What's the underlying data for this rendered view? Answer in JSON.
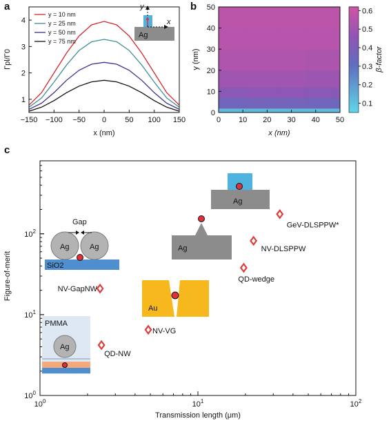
{
  "colors": {
    "red": "#d7262b",
    "teal": "#3f8f96",
    "indigo": "#3a2f8f",
    "black": "#111111",
    "silver": "#8c8c8c",
    "gold": "#f6b81c",
    "blue": "#4f8fd0",
    "cyan": "#3fb8dc",
    "pmma": "#dde8f2",
    "orange": "#f3a97a",
    "marker": "#e0303a",
    "diamond": "#e03c3c"
  },
  "panels": {
    "a": "a",
    "b": "b",
    "c": "c"
  },
  "insets": {
    "a": {
      "substrate": "Ag",
      "x_axis": "x",
      "y_axis": "y"
    },
    "c": {
      "gap_label": "Gap",
      "ag": "Ag",
      "sio2": "SiO2",
      "au": "Au",
      "pmma": "PMMA"
    }
  },
  "chart_data": [
    {
      "panel": "a",
      "type": "line",
      "title": "",
      "xlabel": "x (nm)",
      "ylabel": "Γpl/Γ0",
      "xlim": [
        -150,
        150
      ],
      "ylim": [
        0.5,
        4.5
      ],
      "xticks": [
        -150,
        -100,
        -50,
        0,
        50,
        100,
        150
      ],
      "yticks": [
        1,
        2,
        3,
        4
      ],
      "legend_position": "top-left",
      "series": [
        {
          "name": "y = 10 nm",
          "color": "#d7262b",
          "x": [
            -150,
            -125,
            -100,
            -75,
            -50,
            -25,
            0,
            25,
            50,
            75,
            100,
            125,
            150
          ],
          "y": [
            0.78,
            1.25,
            2.0,
            2.75,
            3.4,
            3.82,
            3.95,
            3.82,
            3.4,
            2.75,
            2.0,
            1.25,
            0.78
          ]
        },
        {
          "name": "y = 25 nm",
          "color": "#3f8f96",
          "x": [
            -150,
            -125,
            -100,
            -75,
            -50,
            -25,
            0,
            25,
            50,
            75,
            100,
            125,
            150
          ],
          "y": [
            0.7,
            1.05,
            1.65,
            2.3,
            2.85,
            3.18,
            3.27,
            3.18,
            2.85,
            2.3,
            1.65,
            1.05,
            0.7
          ]
        },
        {
          "name": "y = 50 nm",
          "color": "#3a2f8f",
          "x": [
            -150,
            -125,
            -100,
            -75,
            -50,
            -25,
            0,
            25,
            50,
            75,
            100,
            125,
            150
          ],
          "y": [
            0.62,
            0.85,
            1.25,
            1.72,
            2.1,
            2.33,
            2.4,
            2.33,
            2.1,
            1.72,
            1.25,
            0.85,
            0.62
          ]
        },
        {
          "name": "y = 75 nm",
          "color": "#111111",
          "x": [
            -150,
            -125,
            -100,
            -75,
            -50,
            -25,
            0,
            25,
            50,
            75,
            100,
            125,
            150
          ],
          "y": [
            0.55,
            0.7,
            0.95,
            1.25,
            1.5,
            1.66,
            1.72,
            1.66,
            1.5,
            1.25,
            0.95,
            0.7,
            0.55
          ]
        }
      ]
    },
    {
      "panel": "b",
      "type": "heatmap",
      "title": "",
      "xlabel": "x (nm)",
      "ylabel": "y (nm)",
      "xlim": [
        0,
        50
      ],
      "ylim": [
        0,
        50
      ],
      "xticks": [
        0,
        10,
        20,
        30,
        40,
        50
      ],
      "yticks": [
        0,
        10,
        20,
        30,
        40,
        50
      ],
      "colorbar_label": "β-factor",
      "colorbar_ticks": [
        0.1,
        0.2,
        0.3,
        0.4,
        0.5,
        0.6
      ],
      "colorbar_range": [
        0.05,
        0.62
      ],
      "x_edges": [
        0,
        12,
        24,
        36,
        48,
        50
      ],
      "y_edges": [
        0,
        2,
        7,
        12,
        20,
        30,
        40,
        50
      ],
      "values": [
        [
          0.12,
          0.12,
          0.12,
          0.12,
          0.12
        ],
        [
          0.36,
          0.37,
          0.37,
          0.36,
          0.36
        ],
        [
          0.44,
          0.45,
          0.45,
          0.44,
          0.44
        ],
        [
          0.5,
          0.5,
          0.5,
          0.49,
          0.49
        ],
        [
          0.54,
          0.54,
          0.54,
          0.53,
          0.53
        ],
        [
          0.56,
          0.56,
          0.56,
          0.56,
          0.56
        ],
        [
          0.57,
          0.57,
          0.57,
          0.57,
          0.57
        ]
      ]
    },
    {
      "panel": "c",
      "type": "scatter",
      "title": "",
      "xlabel": "Transmission length (μm)",
      "ylabel": "Figure-of-merit",
      "xscale": "log",
      "yscale": "log",
      "xlim": [
        1,
        100
      ],
      "ylim": [
        1,
        800
      ],
      "xticks": [
        1,
        10,
        100
      ],
      "yticks": [
        1,
        10,
        100
      ],
      "points": [
        {
          "label": "GeV-DLSPPW*",
          "x": 33,
          "y": 175
        },
        {
          "label": "NV-DLSPPW",
          "x": 22.5,
          "y": 82
        },
        {
          "label": "QD-wedge",
          "x": 19.5,
          "y": 38
        },
        {
          "label": "NV-GapNW",
          "x": 2.4,
          "y": 21
        },
        {
          "label": "NV-VG",
          "x": 4.85,
          "y": 6.5
        },
        {
          "label": "QD-NW",
          "x": 2.45,
          "y": 4.2
        }
      ]
    }
  ]
}
